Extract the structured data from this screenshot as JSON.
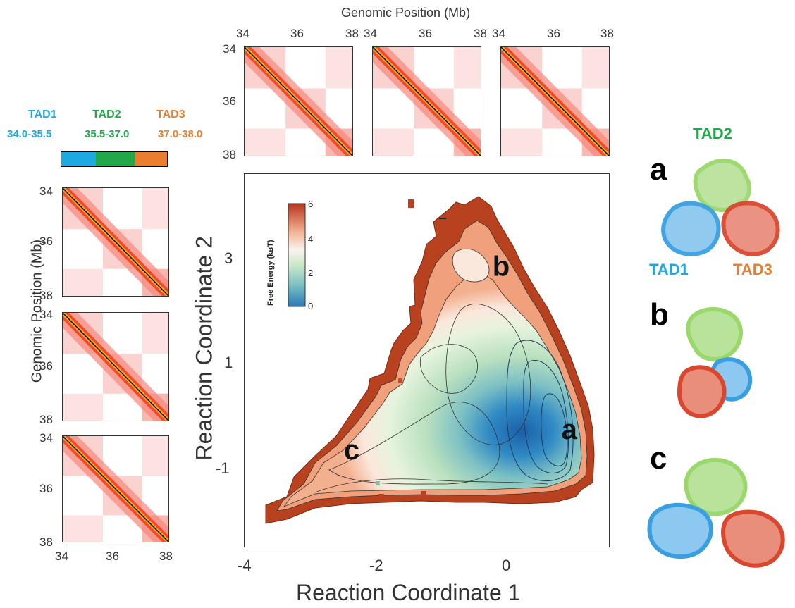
{
  "colors": {
    "tad1": "#1ea9e1",
    "tad2": "#22a84a",
    "tad3": "#e87e2e",
    "tad1_struct": "#3a9fe0",
    "tad2_struct": "#9ad86b",
    "tad3_struct": "#d9472e"
  },
  "top_panel": {
    "title": "Genomic Position (Mb)"
  },
  "left_panel": {
    "ylabel": "Genomic Position (Mb)"
  },
  "heatmap_ticks": [
    "34",
    "36",
    "38"
  ],
  "legend_tads": [
    {
      "name": "TAD1",
      "range": "34.0-35.5"
    },
    {
      "name": "TAD2",
      "range": "35.5-37.0"
    },
    {
      "name": "TAD3",
      "range": "37.0-38.0"
    }
  ],
  "structures": {
    "letters": [
      "a",
      "b",
      "c"
    ],
    "labels": {
      "tad2": "TAD2",
      "tad1": "TAD1",
      "tad3": "TAD3"
    }
  },
  "chart_data": {
    "type": "heatmap",
    "xlabel": "Reaction Coordinate 1",
    "ylabel": "Reaction Coordinate 2",
    "xlim": [
      -4,
      1.6
    ],
    "ylim": [
      -2.7,
      4.6
    ],
    "xticks": [
      "-4",
      "-2",
      "0"
    ],
    "xtick_values": [
      -4,
      -2,
      0
    ],
    "yticks": [
      "3",
      "1",
      "-1"
    ],
    "ytick_values": [
      3,
      1,
      -1
    ],
    "colorbar": {
      "label": "Free Energy (kʙT)",
      "min": 0,
      "max": 6,
      "ticks": [
        "6",
        "4",
        "2",
        "0"
      ]
    },
    "annotations": [
      {
        "text": "a",
        "x": 1.0,
        "y": -0.6
      },
      {
        "text": "b",
        "x": -0.05,
        "y": 2.6
      },
      {
        "text": "c",
        "x": -2.35,
        "y": -1.0
      }
    ]
  }
}
